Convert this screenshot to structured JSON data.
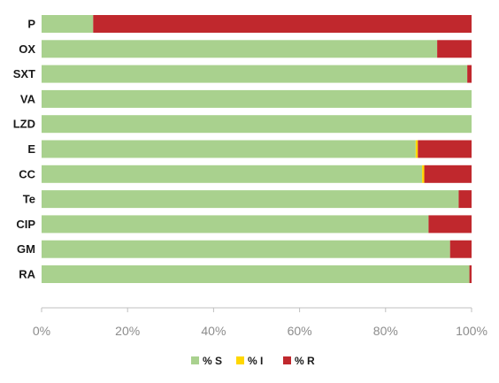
{
  "chart_data": {
    "type": "bar",
    "orientation": "horizontal",
    "stacked": true,
    "title": "",
    "xlabel": "",
    "ylabel": "",
    "categories": [
      "P",
      "OX",
      "SXT",
      "VA",
      "LZD",
      "E",
      "CC",
      "Te",
      "CIP",
      "GM",
      "RA"
    ],
    "series": [
      {
        "name": "% S",
        "color": "#a9d18e",
        "values": [
          12,
          92,
          99,
          100,
          100,
          87,
          88.5,
          97,
          90,
          95,
          99.5
        ]
      },
      {
        "name": "% I",
        "color": "#ffd700",
        "values": [
          0,
          0,
          0,
          0,
          0,
          0.5,
          0.5,
          0,
          0,
          0,
          0
        ]
      },
      {
        "name": "% R",
        "color": "#c0282d",
        "values": [
          88,
          8,
          1,
          0,
          0,
          12.5,
          11,
          3,
          10,
          5,
          0.5
        ]
      }
    ],
    "xlim": [
      0,
      100
    ],
    "xticks": [
      "0%",
      "20%",
      "40%",
      "60%",
      "80%",
      "100%"
    ],
    "grid": false,
    "legend_position": "bottom"
  }
}
